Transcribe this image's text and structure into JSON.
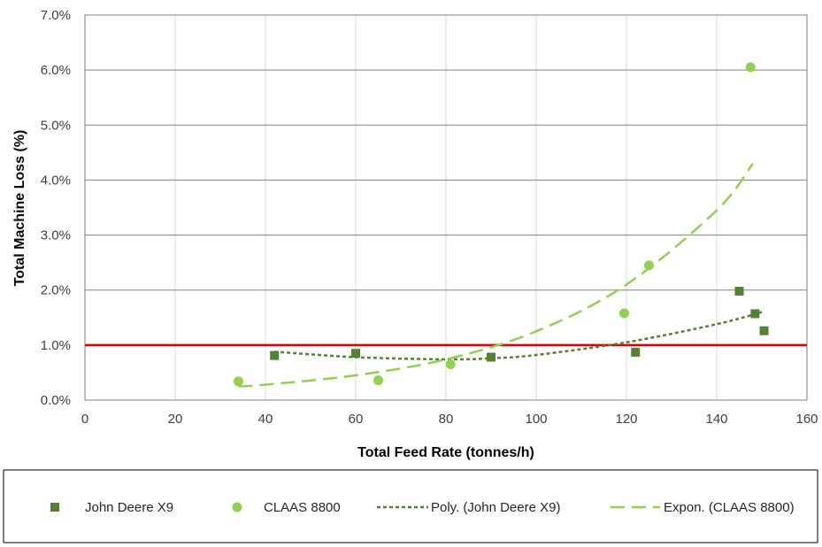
{
  "chart_data": {
    "type": "scatter",
    "xlabel": "Total Feed Rate (tonnes/h)",
    "ylabel": "Total Machine Loss (%)",
    "xlim": [
      0,
      160
    ],
    "ylim": [
      0,
      7
    ],
    "x_ticks": [
      "0",
      "20",
      "40",
      "60",
      "80",
      "100",
      "120",
      "140",
      "160"
    ],
    "y_ticks": [
      "0.0%",
      "1.0%",
      "2.0%",
      "3.0%",
      "4.0%",
      "5.0%",
      "6.0%",
      "7.0%"
    ],
    "grid": true,
    "legend_position": "bottom",
    "reference_line": {
      "y": 1.0,
      "color": "#e00000"
    },
    "series": [
      {
        "name": "John Deere X9",
        "marker": "square",
        "color": "#538135",
        "x": [
          42,
          60,
          90,
          122,
          145,
          148.5,
          150.5
        ],
        "y": [
          0.81,
          0.85,
          0.78,
          0.87,
          1.98,
          1.57,
          1.26
        ]
      },
      {
        "name": "CLAAS 8800",
        "marker": "circle",
        "color": "#92d050",
        "x": [
          34,
          65,
          81,
          119.5,
          125,
          147.5
        ],
        "y": [
          0.34,
          0.36,
          0.65,
          1.58,
          2.45,
          6.05
        ]
      }
    ],
    "trendlines": [
      {
        "name": "Poly. (John Deere X9)",
        "style": "dotted",
        "color": "#538135",
        "x": [
          42,
          60,
          80,
          90,
          100,
          120,
          140,
          150
        ],
        "y": [
          0.88,
          0.78,
          0.74,
          0.76,
          0.82,
          1.05,
          1.38,
          1.6
        ]
      },
      {
        "name": "Expon. (CLAAS 8800)",
        "style": "dashed",
        "color": "#92d050",
        "x": [
          34,
          40,
          60,
          80,
          100,
          120,
          140,
          148
        ],
        "y": [
          0.25,
          0.28,
          0.45,
          0.74,
          1.25,
          2.1,
          3.45,
          4.3
        ]
      }
    ]
  }
}
